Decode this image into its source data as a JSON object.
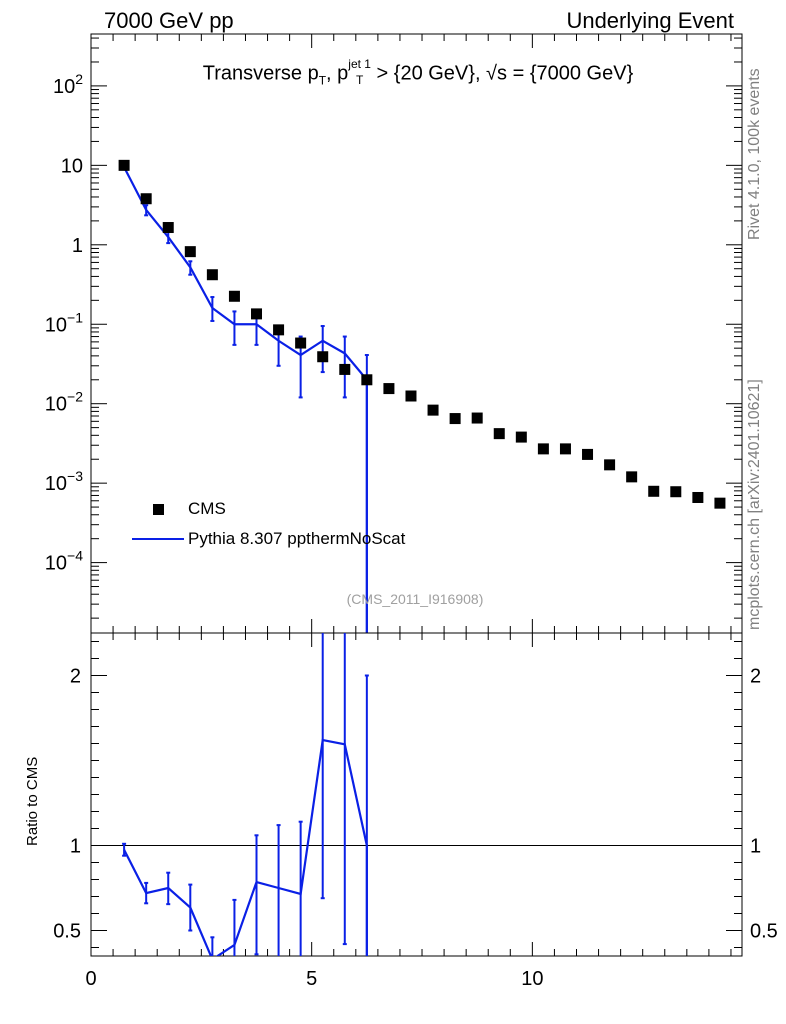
{
  "header": {
    "left": "7000 GeV pp",
    "right": "Underlying Event"
  },
  "side_text": {
    "top": "Rivet 4.1.0,  100k events",
    "bottom": "mcplots.cern.ch [arXiv:2401.10621]"
  },
  "title": {
    "text_a": "Transverse p",
    "sub_a": "T",
    "text_b": ", p",
    "sup_b": "jet 1",
    "sub_b": "T",
    "text_c": " > {20 GeV}, √s = {7000 GeV}"
  },
  "analysis_id": "(CMS_2011_I916908)",
  "legend": {
    "data_label": "CMS",
    "mc_label": "Pythia 8.307 ppthermNoScat"
  },
  "ratio_ylabel": "Ratio to CMS",
  "colors": {
    "data": "#000000",
    "mc": "#0a20e6"
  },
  "chart_data": [
    {
      "type": "scatter",
      "role": "main",
      "yscale": "log",
      "xlim": [
        0,
        14.75
      ],
      "ylim": [
        1.3e-05,
        450
      ],
      "y_ticks": [
        {
          "v": 100,
          "label": "10",
          "exp": "2"
        },
        {
          "v": 10,
          "label": "10",
          "exp": ""
        },
        {
          "v": 1,
          "label": "1",
          "exp": ""
        },
        {
          "v": 0.1,
          "label": "10",
          "exp": "−1"
        },
        {
          "v": 0.01,
          "label": "10",
          "exp": "−2"
        },
        {
          "v": 0.001,
          "label": "10",
          "exp": "−3"
        },
        {
          "v": 0.0001,
          "label": "10",
          "exp": "−4"
        }
      ],
      "series": [
        {
          "name": "CMS",
          "kind": "markers",
          "x": [
            0.75,
            1.25,
            1.75,
            2.25,
            2.75,
            3.25,
            3.75,
            4.25,
            4.75,
            5.25,
            5.75,
            6.25,
            6.75,
            7.25,
            7.75,
            8.25,
            8.75,
            9.25,
            9.75,
            10.25,
            10.75,
            11.25,
            11.75,
            12.25,
            12.75,
            13.25,
            13.75,
            14.25
          ],
          "y": [
            10.0,
            3.8,
            1.65,
            0.82,
            0.42,
            0.225,
            0.135,
            0.085,
            0.058,
            0.039,
            0.027,
            0.02,
            0.0155,
            0.0125,
            0.0083,
            0.0065,
            0.0066,
            0.0042,
            0.0038,
            0.0027,
            0.0027,
            0.0023,
            0.0017,
            0.0012,
            0.00079,
            0.00078,
            0.00066,
            0.00056
          ]
        },
        {
          "name": "Pythia 8.307 ppthermNoScat",
          "kind": "line",
          "x": [
            0.75,
            1.25,
            1.75,
            2.25,
            2.75,
            3.25,
            3.75,
            4.25,
            4.75,
            5.25,
            5.75,
            6.25
          ],
          "y": [
            9.5,
            2.75,
            1.25,
            0.52,
            0.16,
            0.1,
            0.1,
            0.062,
            0.041,
            0.062,
            0.043,
            0.02
          ],
          "err_low": [
            9.0,
            2.35,
            1.05,
            0.42,
            0.11,
            0.055,
            0.055,
            0.03,
            0.012,
            0.025,
            0.012,
            1e-06
          ],
          "err_high": [
            10.0,
            3.15,
            1.45,
            0.62,
            0.22,
            0.145,
            0.145,
            0.094,
            0.07,
            0.095,
            0.07,
            0.041
          ]
        }
      ]
    },
    {
      "type": "line",
      "role": "ratio",
      "ylabel": "Ratio to CMS",
      "xlim": [
        0,
        14.75
      ],
      "ylim": [
        0.35,
        2.25
      ],
      "reference_line": 1.0,
      "y_ticks": [
        {
          "v": 0.5,
          "label": "0.5"
        },
        {
          "v": 1,
          "label": "1"
        },
        {
          "v": 2,
          "label": "2"
        }
      ],
      "x_ticks": [
        {
          "v": 0,
          "label": "0"
        },
        {
          "v": 5,
          "label": "5"
        },
        {
          "v": 10,
          "label": "10"
        }
      ],
      "series": [
        {
          "name": "Pythia 8.307 ppthermNoScat / CMS",
          "x": [
            0.75,
            1.25,
            1.75,
            2.25,
            2.75,
            3.25,
            3.75,
            4.25,
            4.75,
            5.25,
            5.75,
            6.25
          ],
          "y": [
            0.975,
            0.72,
            0.75,
            0.635,
            0.33,
            0.415,
            0.785,
            0.75,
            0.715,
            1.62,
            1.595,
            1.0
          ],
          "err_low": [
            0.94,
            0.66,
            0.655,
            0.5,
            0.2,
            0.15,
            0.36,
            0.34,
            0.3,
            0.69,
            0.42,
            0.0
          ],
          "err_high": [
            1.01,
            0.78,
            0.84,
            0.77,
            0.46,
            0.68,
            1.06,
            1.12,
            1.14,
            2.3,
            2.6,
            2.0
          ]
        }
      ]
    }
  ]
}
